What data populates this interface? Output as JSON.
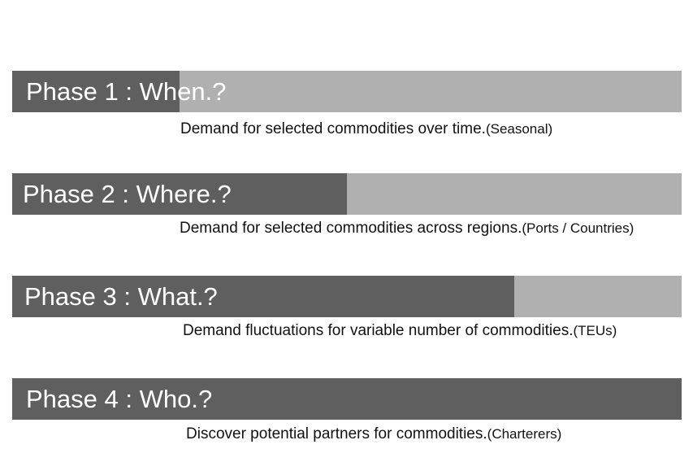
{
  "phases": [
    {
      "label": "Phase 1 : When.?",
      "progress": 0.25,
      "description": "Demand for selected commodities over time.",
      "note": "(Seasonal)"
    },
    {
      "label": "Phase 2 : Where.?",
      "progress": 0.5,
      "description": "Demand for selected commodities across regions.",
      "note": "(Ports / Countries)"
    },
    {
      "label": "Phase 3 : What.?",
      "progress": 0.75,
      "description": "Demand fluctuations for variable number of commodities.",
      "note": "(TEUs)"
    },
    {
      "label": "Phase 4 : Who.?",
      "progress": 1.0,
      "description": "Discover potential partners for commodities.",
      "note": "(Charterers)"
    }
  ],
  "colors": {
    "filled": "#5f5f5f",
    "track": "#b0b0b0",
    "label_text": "#ffffff",
    "description_text": "#111111"
  }
}
